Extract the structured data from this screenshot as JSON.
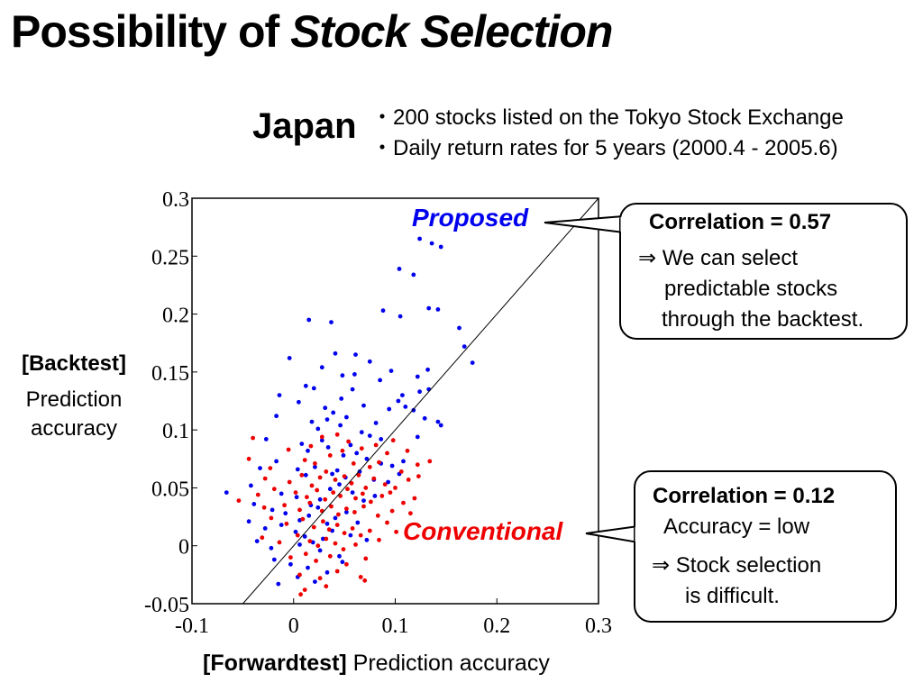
{
  "slide": {
    "title_plain": "Possibility of ",
    "title_italic": "Stock Selection",
    "region": "Japan",
    "bullets": [
      "・200 stocks listed on the Tokyo Stock Exchange",
      "・Daily return rates for 5 years (2000.4 - 2005.6)"
    ],
    "ylabel_bold": "[Backtest]",
    "ylabel_line2": "Prediction",
    "ylabel_line3": "accuracy",
    "xlabel_bold": "[Forwardtest]",
    "xlabel_rest": " Prediction accuracy",
    "callout_proposed": {
      "heading": "Correlation = 0.57",
      "lines": [
        "⇒ We can select",
        "predictable stocks",
        "through the backtest."
      ]
    },
    "callout_conventional": {
      "heading": "Correlation = 0.12",
      "lines": [
        "Accuracy = low",
        "⇒ Stock selection",
        "is difficult."
      ]
    }
  },
  "chart_data": {
    "type": "scatter",
    "xlim": [
      -0.1,
      0.3
    ],
    "ylim": [
      -0.05,
      0.3
    ],
    "x_ticks": [
      "-0.1",
      "0",
      "0.1",
      "0.2",
      "0.3"
    ],
    "y_ticks": [
      "0.3",
      "0.25",
      "0.2",
      "0.15",
      "0.1",
      "0.05",
      "0",
      "-0.05"
    ],
    "reference_line": "y = x",
    "series": [
      {
        "name": "Proposed",
        "color": "#0000ee",
        "points": [
          [
            0.124,
            0.265
          ],
          [
            0.136,
            0.261
          ],
          [
            0.145,
            0.258
          ],
          [
            0.104,
            0.239
          ],
          [
            0.118,
            0.234
          ],
          [
            0.133,
            0.205
          ],
          [
            0.142,
            0.204
          ],
          [
            0.088,
            0.203
          ],
          [
            0.105,
            0.198
          ],
          [
            0.015,
            0.195
          ],
          [
            0.037,
            0.193
          ],
          [
            0.163,
            0.188
          ],
          [
            0.168,
            0.172
          ],
          [
            0.176,
            0.158
          ],
          [
            0.041,
            0.166
          ],
          [
            -0.004,
            0.162
          ],
          [
            0.061,
            0.165
          ],
          [
            0.075,
            0.159
          ],
          [
            0.028,
            0.154
          ],
          [
            0.048,
            0.147
          ],
          [
            0.085,
            0.143
          ],
          [
            0.096,
            0.151
          ],
          [
            0.122,
            0.146
          ],
          [
            0.132,
            0.152
          ],
          [
            0.06,
            0.148
          ],
          [
            0.012,
            0.138
          ],
          [
            0.02,
            0.136
          ],
          [
            0.058,
            0.135
          ],
          [
            0.047,
            0.127
          ],
          [
            0.069,
            0.121
          ],
          [
            0.094,
            0.118
          ],
          [
            0.103,
            0.125
          ],
          [
            0.107,
            0.13
          ],
          [
            0.124,
            0.133
          ],
          [
            0.133,
            0.135
          ],
          [
            -0.014,
            0.13
          ],
          [
            0.005,
            0.124
          ],
          [
            0.031,
            0.119
          ],
          [
            0.039,
            0.115
          ],
          [
            0.052,
            0.111
          ],
          [
            0.081,
            0.106
          ],
          [
            0.11,
            0.12
          ],
          [
            0.118,
            0.117
          ],
          [
            -0.017,
            0.112
          ],
          [
            0.018,
            0.107
          ],
          [
            0.024,
            0.101
          ],
          [
            0.033,
            0.109
          ],
          [
            0.046,
            0.104
          ],
          [
            0.067,
            0.098
          ],
          [
            0.075,
            0.095
          ],
          [
            0.086,
            0.092
          ],
          [
            0.122,
            0.094
          ],
          [
            0.142,
            0.107
          ],
          [
            0.129,
            0.11
          ],
          [
            0.145,
            0.104
          ],
          [
            -0.027,
            0.092
          ],
          [
            0.008,
            0.088
          ],
          [
            0.014,
            0.082
          ],
          [
            0.028,
            0.091
          ],
          [
            0.034,
            0.085
          ],
          [
            0.049,
            0.078
          ],
          [
            0.056,
            0.087
          ],
          [
            0.062,
            0.08
          ],
          [
            0.072,
            0.075
          ],
          [
            0.086,
            0.071
          ],
          [
            0.097,
            0.069
          ],
          [
            0.108,
            0.073
          ],
          [
            -0.033,
            0.067
          ],
          [
            -0.017,
            0.073
          ],
          [
            0.004,
            0.066
          ],
          [
            0.012,
            0.061
          ],
          [
            0.021,
            0.068
          ],
          [
            0.038,
            0.062
          ],
          [
            0.043,
            0.065
          ],
          [
            0.051,
            0.059
          ],
          [
            0.065,
            0.064
          ],
          [
            0.079,
            0.057
          ],
          [
            0.093,
            0.055
          ],
          [
            0.104,
            0.062
          ],
          [
            -0.042,
            0.052
          ],
          [
            -0.012,
            0.045
          ],
          [
            0.003,
            0.042
          ],
          [
            0.017,
            0.035
          ],
          [
            0.026,
            0.04
          ],
          [
            0.036,
            0.049
          ],
          [
            0.045,
            0.053
          ],
          [
            0.058,
            0.046
          ],
          [
            0.069,
            0.039
          ],
          [
            0.08,
            0.043
          ],
          [
            -0.066,
            0.046
          ],
          [
            -0.039,
            0.036
          ],
          [
            -0.021,
            0.031
          ],
          [
            -0.008,
            0.028
          ],
          [
            0.006,
            0.022
          ],
          [
            0.015,
            0.026
          ],
          [
            0.024,
            0.033
          ],
          [
            0.033,
            0.019
          ],
          [
            0.041,
            0.024
          ],
          [
            0.052,
            0.029
          ],
          [
            0.063,
            0.02
          ],
          [
            -0.044,
            0.021
          ],
          [
            -0.028,
            0.015
          ],
          [
            -0.012,
            0.018
          ],
          [
            0.002,
            0.012
          ],
          [
            0.011,
            0.008
          ],
          [
            0.019,
            0.003
          ],
          [
            0.029,
            0.006
          ],
          [
            0.038,
            0.013
          ],
          [
            0.056,
            0.009
          ],
          [
            0.072,
            0.005
          ],
          [
            -0.036,
            0.004
          ],
          [
            -0.022,
            -0.002
          ],
          [
            0.006,
            0.001
          ],
          [
            0.026,
            -0.004
          ],
          [
            0.045,
            -0.009
          ],
          [
            -0.019,
            -0.012
          ],
          [
            -0.003,
            -0.016
          ],
          [
            0.014,
            -0.019
          ],
          [
            0.033,
            -0.023
          ],
          [
            0.048,
            -0.014
          ],
          [
            -0.015,
            -0.033
          ],
          [
            0.004,
            -0.027
          ],
          [
            0.021,
            -0.031
          ]
        ]
      },
      {
        "name": "Conventional",
        "color": "#ee0000",
        "points": [
          [
            -0.04,
            0.093
          ],
          [
            -0.005,
            0.083
          ],
          [
            0.017,
            0.086
          ],
          [
            0.028,
            0.094
          ],
          [
            0.043,
            0.096
          ],
          [
            0.054,
            0.09
          ],
          [
            0.067,
            0.084
          ],
          [
            0.081,
            0.087
          ],
          [
            0.092,
            0.08
          ],
          [
            0.098,
            0.091
          ],
          [
            0.112,
            0.082
          ],
          [
            -0.044,
            0.075
          ],
          [
            -0.023,
            0.067
          ],
          [
            0.011,
            0.074
          ],
          [
            0.021,
            0.071
          ],
          [
            0.036,
            0.078
          ],
          [
            0.048,
            0.082
          ],
          [
            0.059,
            0.071
          ],
          [
            0.075,
            0.068
          ],
          [
            0.084,
            0.072
          ],
          [
            0.106,
            0.064
          ],
          [
            0.122,
            0.07
          ],
          [
            0.134,
            0.073
          ],
          [
            -0.028,
            0.058
          ],
          [
            -0.004,
            0.055
          ],
          [
            0.008,
            0.061
          ],
          [
            0.018,
            0.052
          ],
          [
            0.026,
            0.059
          ],
          [
            0.032,
            0.064
          ],
          [
            0.041,
            0.057
          ],
          [
            0.05,
            0.06
          ],
          [
            0.057,
            0.054
          ],
          [
            0.064,
            0.061
          ],
          [
            0.071,
            0.05
          ],
          [
            0.079,
            0.058
          ],
          [
            0.09,
            0.053
          ],
          [
            0.1,
            0.05
          ],
          [
            0.113,
            0.057
          ],
          [
            0.123,
            0.06
          ],
          [
            -0.035,
            0.044
          ],
          [
            -0.019,
            0.049
          ],
          [
            0.002,
            0.046
          ],
          [
            0.013,
            0.042
          ],
          [
            0.023,
            0.048
          ],
          [
            0.031,
            0.04
          ],
          [
            0.039,
            0.046
          ],
          [
            0.046,
            0.043
          ],
          [
            0.053,
            0.049
          ],
          [
            0.061,
            0.041
          ],
          [
            0.068,
            0.045
          ],
          [
            0.076,
            0.038
          ],
          [
            0.087,
            0.043
          ],
          [
            0.095,
            0.046
          ],
          [
            0.108,
            0.037
          ],
          [
            0.119,
            0.041
          ],
          [
            -0.054,
            0.039
          ],
          [
            -0.029,
            0.033
          ],
          [
            -0.009,
            0.035
          ],
          [
            0.006,
            0.031
          ],
          [
            0.016,
            0.037
          ],
          [
            0.028,
            0.03
          ],
          [
            0.037,
            0.034
          ],
          [
            0.044,
            0.027
          ],
          [
            0.052,
            0.032
          ],
          [
            0.06,
            0.029
          ],
          [
            0.069,
            0.034
          ],
          [
            0.083,
            0.026
          ],
          [
            0.097,
            0.03
          ],
          [
            0.115,
            0.028
          ],
          [
            -0.022,
            0.024
          ],
          [
            -0.007,
            0.019
          ],
          [
            0.009,
            0.023
          ],
          [
            0.02,
            0.016
          ],
          [
            0.029,
            0.021
          ],
          [
            0.035,
            0.014
          ],
          [
            0.043,
            0.018
          ],
          [
            0.05,
            0.011
          ],
          [
            0.058,
            0.015
          ],
          [
            0.066,
            0.009
          ],
          [
            0.075,
            0.013
          ],
          [
            0.092,
            0.02
          ],
          [
            0.101,
            0.012
          ],
          [
            -0.031,
            0.007
          ],
          [
            -0.014,
            0.003
          ],
          [
            0.004,
            0.009
          ],
          [
            0.016,
            0.004
          ],
          [
            0.024,
            0.0
          ],
          [
            0.032,
            0.006
          ],
          [
            0.041,
            0.002
          ],
          [
            0.049,
            -0.003
          ],
          [
            0.061,
            0.001
          ],
          [
            0.084,
            0.005
          ],
          [
            -0.003,
            -0.01
          ],
          [
            0.012,
            -0.007
          ],
          [
            0.022,
            -0.013
          ],
          [
            0.036,
            -0.009
          ],
          [
            0.052,
            -0.016
          ],
          [
            0.071,
            -0.011
          ],
          [
            0.006,
            -0.025
          ],
          [
            0.026,
            -0.028
          ],
          [
            0.043,
            -0.022
          ],
          [
            0.066,
            -0.027
          ],
          [
            0.011,
            -0.038
          ],
          [
            0.032,
            -0.035
          ],
          [
            0.07,
            -0.03
          ],
          [
            0.007,
            -0.042
          ]
        ]
      }
    ]
  }
}
